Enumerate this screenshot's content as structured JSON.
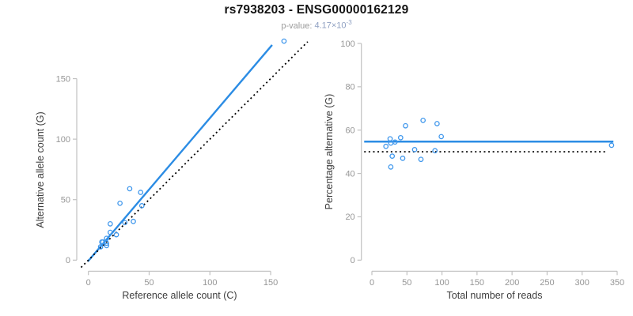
{
  "header": {
    "title": "rs7938203 - ENSG00000162129",
    "subtitle": {
      "label": "p-value:",
      "value": "4.17×10",
      "exponent": "-3"
    }
  },
  "colors": {
    "accent_blue": "#2b8ce4",
    "point_blue": "#3f97ec",
    "dotted_black": "#000000",
    "axis_gray": "#c1c1c1",
    "tick_label_gray": "#969696",
    "axis_title_gray": "#3d3d3d",
    "title_black": "#131313",
    "subtitle_gray": "#9b9b9b"
  },
  "chart_data": [
    {
      "id": "allele-counts-scatter",
      "type": "scatter",
      "xlabel": "Reference allele count (C)",
      "ylabel": "Alternative allele count (G)",
      "xticks": [
        0,
        50,
        100,
        150
      ],
      "yticks": [
        0,
        50,
        100,
        150
      ],
      "xlim": [
        -8,
        185
      ],
      "ylim": [
        -9,
        181
      ],
      "grid": false,
      "points": [
        [
          10,
          11
        ],
        [
          11,
          15
        ],
        [
          12,
          15
        ],
        [
          15,
          12
        ],
        [
          15,
          14
        ],
        [
          15,
          18
        ],
        [
          18,
          23
        ],
        [
          23,
          21
        ],
        [
          18,
          30
        ],
        [
          30,
          31
        ],
        [
          37,
          32
        ],
        [
          26,
          47
        ],
        [
          44,
          45
        ],
        [
          34,
          59
        ],
        [
          43,
          56
        ],
        [
          161,
          181
        ]
      ],
      "lines": [
        {
          "name": "regression-line",
          "style": "solid",
          "x1": -0.45,
          "y1": -1.1,
          "x2": 151.2,
          "y2": 177.8
        },
        {
          "name": "identity-line",
          "style": "dotted",
          "x1": -6,
          "y1": -6,
          "x2": 180.5,
          "y2": 180.5
        }
      ]
    },
    {
      "id": "percentage-vs-reads-scatter",
      "type": "scatter",
      "xlabel": "Total number of reads",
      "ylabel": "Percentage alternative (G)",
      "xticks": [
        0,
        50,
        100,
        150,
        200,
        250,
        300,
        350
      ],
      "yticks": [
        0,
        20,
        40,
        60,
        80,
        100
      ],
      "xlim": [
        -14,
        354
      ],
      "ylim": [
        0,
        100
      ],
      "grid": false,
      "points": [
        [
          20,
          52.5
        ],
        [
          26,
          56
        ],
        [
          27,
          54
        ],
        [
          27,
          43
        ],
        [
          29,
          48
        ],
        [
          33,
          54.5
        ],
        [
          41,
          56.5
        ],
        [
          44,
          47
        ],
        [
          48,
          62
        ],
        [
          61,
          51
        ],
        [
          70,
          46.5
        ],
        [
          73,
          64.5
        ],
        [
          90,
          50.5
        ],
        [
          93,
          63
        ],
        [
          99,
          57
        ],
        [
          342,
          53
        ]
      ],
      "lines": [
        {
          "name": "mean-percentage-line",
          "style": "solid",
          "x1": -11,
          "y1": 54.7,
          "x2": 344.6,
          "y2": 54.7
        },
        {
          "name": "null-50pct-line",
          "style": "dotted",
          "x1": -11,
          "y1": 50,
          "x2": 335,
          "y2": 50
        }
      ]
    }
  ]
}
